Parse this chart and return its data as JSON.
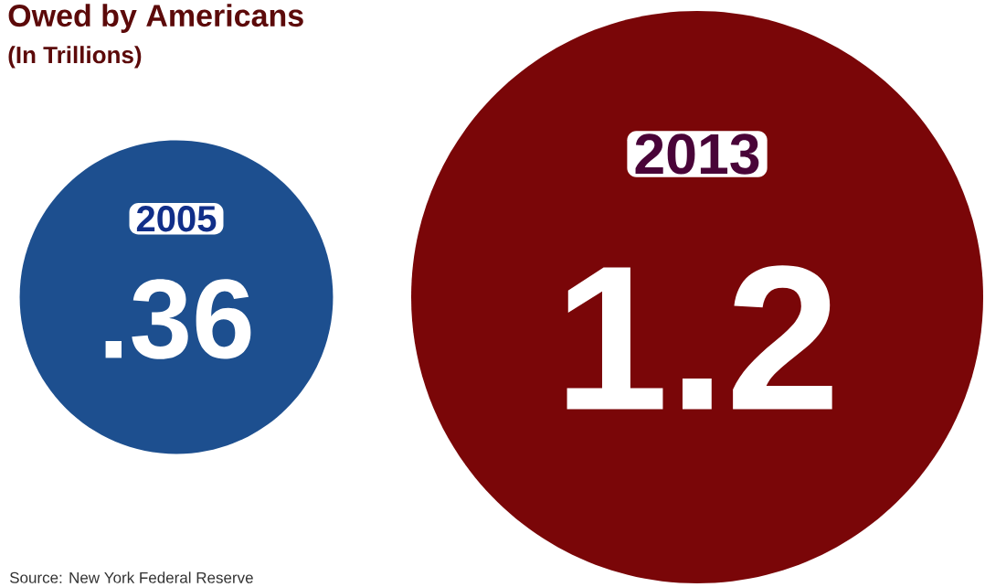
{
  "chart_data": {
    "type": "other",
    "title": "Owed by Americans",
    "subtitle": "(In Trillions)",
    "categories": [
      "2005",
      "2013"
    ],
    "values": [
      0.36,
      1.2
    ],
    "value_labels": [
      ".36",
      "1.2"
    ],
    "colors": [
      "#1d4f8f",
      "#7a0608"
    ],
    "annotations": [
      "Source: New York Federal Reserve"
    ]
  }
}
